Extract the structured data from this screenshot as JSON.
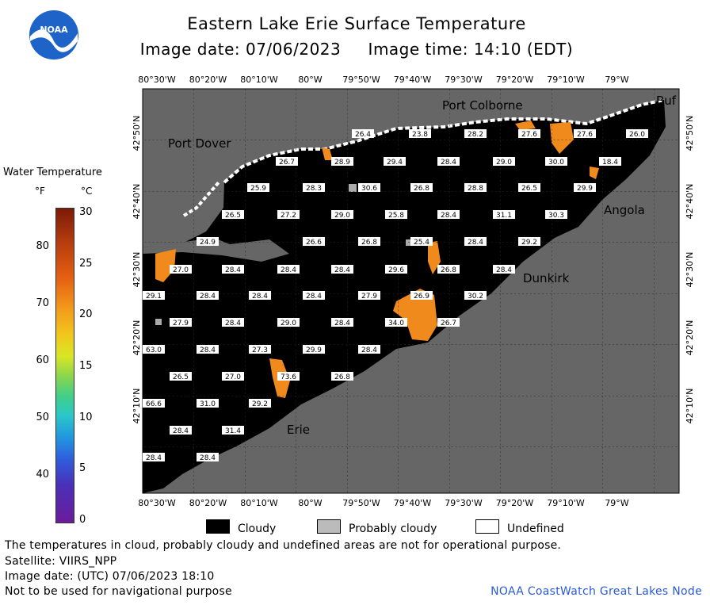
{
  "header": {
    "title": "Eastern Lake Erie Surface Temperature",
    "date_line": "Image date: 07/06/2023     Image time: 14:10 (EDT)",
    "logo_text": "NOAA"
  },
  "colorbar": {
    "label": "Water Temperature",
    "unit_f": "°F",
    "unit_c": "°C",
    "f_ticks": [
      "80",
      "70",
      "60",
      "50",
      "40"
    ],
    "c_ticks": [
      "30",
      "25",
      "20",
      "15",
      "10",
      "5",
      "0"
    ],
    "range_c": [
      0,
      30
    ]
  },
  "map": {
    "lon_labels": [
      "80°30'W",
      "80°20'W",
      "80°10'W",
      "80°W",
      "79°50'W",
      "79°40'W",
      "79°30'W",
      "79°20'W",
      "79°10'W",
      "79°W"
    ],
    "lat_labels": [
      "42°50'N",
      "42°40'N",
      "42°30'N",
      "42°20'N",
      "42°10'N"
    ],
    "places": [
      "Port Colborne",
      "Port Dover",
      "Angola",
      "Dunkirk",
      "Erie",
      "Buf"
    ],
    "temps": [
      "26.4",
      "23.8",
      "28.2",
      "27.6",
      "27.6",
      "26.0",
      "26.7",
      "28.9",
      "29.4",
      "28.4",
      "29.0",
      "30.0",
      "18.4",
      "25.9",
      "28.3",
      "30.6",
      "26.8",
      "28.8",
      "26.5",
      "29.9",
      "26.5",
      "27.2",
      "29.0",
      "25.8",
      "28.4",
      "31.1",
      "30.3",
      "24.9",
      "26.6",
      "26.8",
      "25.4",
      "28.4",
      "29.2",
      "27.0",
      "28.4",
      "28.4",
      "28.4",
      "29.6",
      "26.8",
      "28.4",
      "29.1",
      "28.4",
      "28.4",
      "28.4",
      "27.9",
      "26.9",
      "30.2",
      "27.9",
      "28.4",
      "29.0",
      "28.4",
      "34.0",
      "26.7",
      "63.0",
      "28.4",
      "27.3",
      "29.9",
      "28.4",
      "26.5",
      "27.0",
      "73.6",
      "26.8",
      "66.6",
      "31.0",
      "29.2",
      "28.4",
      "31.4",
      "28.4",
      "28.4"
    ]
  },
  "legend": {
    "cloudy": "Cloudy",
    "probably_cloudy": "Probably cloudy",
    "undefined": "Undefined"
  },
  "footer": {
    "note": "The temperatures in cloud, probably cloudy and undefined areas are not for operational purpose.",
    "satellite": "Satellite: VIIRS_NPP",
    "utc_date": "Image date: (UTC) 07/06/2023  18:10",
    "nav_warning": "Not to be used for navigational purpose",
    "credit": "NOAA CoastWatch Great Lakes Node"
  },
  "colors": {
    "land": "#666666",
    "water_cloud": "#000000",
    "warm": "#f08a1c",
    "credit": "#2a5bd0"
  }
}
